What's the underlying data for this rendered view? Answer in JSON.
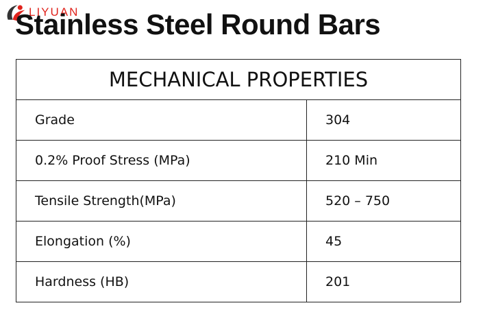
{
  "logo": {
    "text": "LIYUAN"
  },
  "header": {
    "title": "Stainless Steel Round Bars"
  },
  "table": {
    "title": "MECHANICAL PROPERTIES",
    "rows": [
      [
        "Grade",
        "304"
      ],
      [
        "0.2% Proof Stress (MPa)",
        "210 Min"
      ],
      [
        "Tensile Strength(MPa)",
        "520 – 750"
      ],
      [
        "Elongation (%)",
        "45"
      ],
      [
        "Hardness (HB)",
        "201"
      ]
    ]
  }
}
